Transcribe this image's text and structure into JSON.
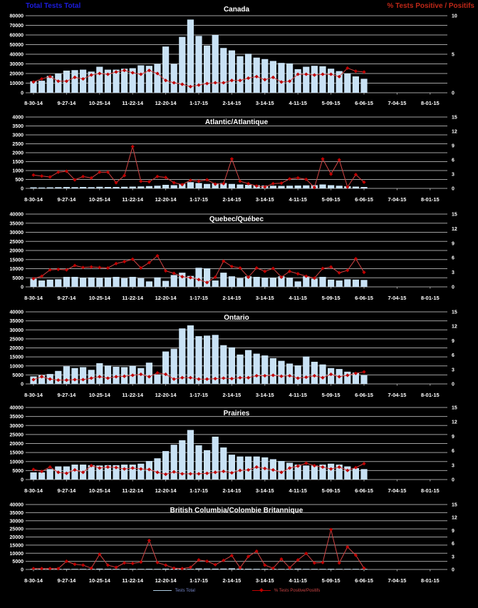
{
  "headers": {
    "left": "Total Tests Total",
    "right": "% Tests Positive / Positifs",
    "left_color": "#1c1cdf",
    "right_color": "#c02818"
  },
  "legend": {
    "items": [
      {
        "label": "Tests Total",
        "swatch": "blue-line"
      },
      {
        "label": "% Tests Positive/Positifs",
        "swatch": "red-line-diamond"
      }
    ]
  },
  "colors": {
    "background": "#000000",
    "bar_fill": "#c9e2f5",
    "line_stroke": "#d24444",
    "marker_fill": "#c00000",
    "grid": "#a0a0a0",
    "axis_text": "#ffffff"
  },
  "x_labels": [
    "8-30-14",
    "9-27-14",
    "10-25-14",
    "11-22-14",
    "12-20-14",
    "1-17-15",
    "2-14-15",
    "3-14-15",
    "4-11-15",
    "5-09-15",
    "6-06-15",
    "7-04-15",
    "8-01-15"
  ],
  "chart_data": [
    {
      "type": "bar+line",
      "title": "Canada",
      "xlabel": "",
      "ylabel_left": "Total Tests Total",
      "ylabel_right": "% Tests Positive / Positifs",
      "left_axis": {
        "max": 80000,
        "step": 10000,
        "labels": [
          "80000",
          "70000",
          "60000",
          "50000",
          "40000",
          "30000",
          "20000",
          "10000",
          "0"
        ]
      },
      "right_axis": {
        "max": 10,
        "labels": [
          "10",
          "5",
          "0"
        ]
      },
      "bars": [
        12000,
        12500,
        17500,
        20000,
        23000,
        23500,
        24000,
        22000,
        27000,
        24000,
        24000,
        25000,
        25500,
        28500,
        28000,
        30000,
        48000,
        30000,
        58000,
        76000,
        59000,
        49000,
        60000,
        46500,
        44000,
        38000,
        40500,
        36500,
        35000,
        33000,
        31000,
        30500,
        24500,
        27000,
        28000,
        27500,
        25000,
        22500,
        20000,
        17000,
        14500
      ],
      "line": [
        1.4,
        1.8,
        2.1,
        1.5,
        1.5,
        2.0,
        1.8,
        2.3,
        2.5,
        2.4,
        2.7,
        2.9,
        2.6,
        2.4,
        2.9,
        2.5,
        1.6,
        1.3,
        1.1,
        0.8,
        1.0,
        1.2,
        1.3,
        1.3,
        1.6,
        1.6,
        1.9,
        2.1,
        1.7,
        2.0,
        1.4,
        1.5,
        2.4,
        2.4,
        2.3,
        2.4,
        2.4,
        2.1,
        3.2,
        2.8,
        2.7
      ]
    },
    {
      "type": "bar+line",
      "title": "Atlantic/Atlantique",
      "left_axis": {
        "max": 4000,
        "step": 500,
        "labels": [
          "4000",
          "3500",
          "3000",
          "2500",
          "2000",
          "1500",
          "1000",
          "500",
          "0"
        ]
      },
      "right_axis": {
        "max": 15,
        "labels": [
          "15",
          "12",
          "9",
          "6",
          "3",
          "0"
        ]
      },
      "bars": [
        60,
        50,
        60,
        70,
        80,
        70,
        80,
        70,
        90,
        80,
        80,
        90,
        100,
        110,
        130,
        150,
        200,
        180,
        250,
        350,
        300,
        250,
        280,
        300,
        250,
        220,
        200,
        180,
        160,
        150,
        140,
        150,
        160,
        170,
        180,
        220,
        180,
        150,
        120,
        100,
        80
      ],
      "line": [
        2.8,
        2.6,
        2.4,
        3.4,
        3.6,
        1.8,
        2.5,
        2.2,
        3.4,
        3.4,
        1.2,
        2.7,
        8.8,
        1.5,
        1.4,
        2.5,
        2.3,
        1.2,
        0.8,
        1.7,
        1.5,
        1.8,
        0.9,
        1.0,
        6.2,
        1.5,
        1.0,
        0.5,
        0.3,
        1.0,
        1.1,
        2.0,
        2.2,
        1.9,
        0.2,
        6.2,
        3.0,
        6.0,
        0.3,
        2.9,
        1.3
      ]
    },
    {
      "type": "bar+line",
      "title": "Quebec/Québec",
      "left_axis": {
        "max": 40000,
        "step": 5000,
        "labels": [
          "40000",
          "35000",
          "30000",
          "25000",
          "20000",
          "15000",
          "10000",
          "5000",
          "0"
        ]
      },
      "right_axis": {
        "max": 15,
        "labels": [
          "15",
          "12",
          "9",
          "6",
          "3",
          "0"
        ]
      },
      "bars": [
        4500,
        3500,
        4000,
        4200,
        5500,
        5500,
        5000,
        5200,
        5000,
        5200,
        5500,
        4800,
        5500,
        4800,
        3000,
        5200,
        3300,
        6500,
        7800,
        6000,
        10500,
        10200,
        3500,
        7800,
        5800,
        4800,
        5800,
        5500,
        5000,
        5000,
        5800,
        5000,
        3000,
        5800,
        4500,
        5500,
        4000,
        3500,
        4200,
        4000,
        3800
      ],
      "line": [
        1.7,
        2.2,
        3.5,
        3.6,
        3.5,
        4.4,
        4.0,
        4.1,
        4.0,
        3.9,
        4.8,
        5.2,
        5.7,
        3.9,
        5.0,
        6.4,
        3.3,
        2.8,
        2.1,
        1.9,
        1.5,
        0.9,
        2.0,
        5.3,
        4.2,
        3.9,
        2.0,
        3.9,
        3.2,
        3.8,
        2.0,
        3.2,
        2.7,
        2.2,
        1.8,
        3.8,
        4.1,
        2.9,
        3.4,
        5.8,
        3.0
      ]
    },
    {
      "type": "bar+line",
      "title": "Ontario",
      "left_axis": {
        "max": 40000,
        "step": 5000,
        "labels": [
          "40000",
          "35000",
          "30000",
          "25000",
          "20000",
          "15000",
          "10000",
          "5000",
          "0"
        ]
      },
      "right_axis": {
        "max": 15,
        "labels": [
          "15",
          "12",
          "9",
          "6",
          "3",
          "0"
        ]
      },
      "bars": [
        4200,
        4800,
        5500,
        7200,
        9800,
        8800,
        9300,
        7800,
        11500,
        10200,
        9500,
        9300,
        10000,
        8800,
        11800,
        5300,
        18000,
        19500,
        30800,
        32500,
        26500,
        26800,
        27200,
        21500,
        20300,
        16300,
        18800,
        16800,
        15800,
        14300,
        12800,
        11300,
        10300,
        15200,
        12300,
        10800,
        8800,
        8300,
        6800,
        6300,
        4800
      ],
      "line": [
        0.9,
        1.5,
        1.0,
        0.8,
        0.8,
        0.9,
        0.9,
        1.2,
        1.5,
        1.2,
        1.5,
        1.6,
        1.8,
        2.0,
        1.5,
        2.3,
        2.0,
        1.0,
        1.3,
        1.3,
        1.0,
        1.0,
        1.1,
        1.2,
        1.1,
        1.3,
        1.3,
        1.7,
        1.7,
        1.8,
        1.6,
        1.7,
        1.2,
        1.4,
        1.7,
        1.3,
        2.0,
        1.5,
        1.8,
        2.2,
        2.5
      ]
    },
    {
      "type": "bar+line",
      "title": "Prairies",
      "left_axis": {
        "max": 40000,
        "step": 5000,
        "labels": [
          "40000",
          "35000",
          "30000",
          "25000",
          "20000",
          "15000",
          "10000",
          "5000",
          "0"
        ]
      },
      "right_axis": {
        "max": 15,
        "labels": [
          "15",
          "12",
          "9",
          "6",
          "3",
          "0"
        ]
      },
      "bars": [
        4000,
        4000,
        5800,
        7300,
        7300,
        8300,
        8300,
        8000,
        7800,
        8000,
        8000,
        8300,
        8300,
        8800,
        10300,
        11800,
        15800,
        19300,
        21800,
        27500,
        19000,
        16300,
        23800,
        17800,
        13800,
        12800,
        12800,
        12800,
        12300,
        11300,
        10300,
        9300,
        8300,
        7800,
        7800,
        8300,
        8800,
        8300,
        7300,
        6300,
        5800
      ],
      "line": [
        2.1,
        1.7,
        2.6,
        1.5,
        1.3,
        2.0,
        1.5,
        2.9,
        2.4,
        2.6,
        2.5,
        2.2,
        2.4,
        2.2,
        2.1,
        1.5,
        1.1,
        1.6,
        1.2,
        1.2,
        1.2,
        1.3,
        1.5,
        1.7,
        1.4,
        1.9,
        2.0,
        2.6,
        2.3,
        2.0,
        1.5,
        2.4,
        2.8,
        3.4,
        2.9,
        2.6,
        2.2,
        2.6,
        1.9,
        2.5,
        3.3
      ]
    },
    {
      "type": "bar+line",
      "title": "British Columbia/Colombie Britannique",
      "left_axis": {
        "max": 40000,
        "step": 5000,
        "labels": [
          "40000",
          "35000",
          "30000",
          "25000",
          "20000",
          "15000",
          "10000",
          "5000",
          "0"
        ]
      },
      "right_axis": {
        "max": 15,
        "labels": [
          "15",
          "12",
          "9",
          "6",
          "3",
          "0"
        ]
      },
      "bars": [
        250,
        200,
        220,
        230,
        250,
        240,
        260,
        250,
        500,
        400,
        350,
        400,
        380,
        350,
        400,
        300,
        500,
        450,
        400,
        350,
        600,
        550,
        500,
        550,
        700,
        500,
        450,
        400,
        380,
        360,
        350,
        340,
        500,
        350,
        360,
        350,
        400,
        350,
        300,
        280,
        250
      ],
      "line": [
        0.2,
        0.2,
        0.2,
        0.2,
        1.9,
        1.2,
        1.0,
        0.3,
        3.5,
        1.0,
        0.5,
        1.5,
        1.4,
        1.7,
        6.7,
        1.6,
        1.0,
        0.3,
        0.2,
        0.5,
        2.2,
        1.9,
        1.1,
        2.1,
        3.2,
        0.4,
        3.0,
        4.2,
        1.0,
        0.3,
        2.4,
        0.4,
        2.2,
        3.7,
        1.5,
        1.6,
        9.2,
        1.5,
        5.2,
        3.3,
        0.3
      ]
    }
  ]
}
